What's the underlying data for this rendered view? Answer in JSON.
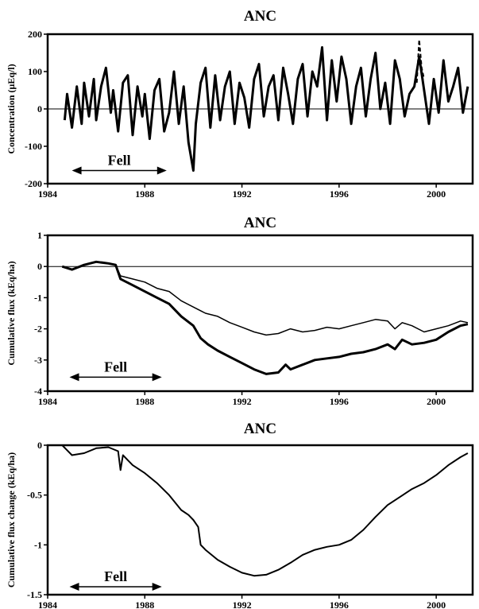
{
  "chart_data": [
    {
      "type": "line",
      "title": "ANC",
      "xlabel": "",
      "ylabel": "Concentration (µEq/l)",
      "xlim": [
        1984,
        2001.5
      ],
      "ylim": [
        -200,
        200
      ],
      "x_ticks": [
        1984,
        1988,
        1992,
        1996,
        2000
      ],
      "y_ticks": [
        200,
        100,
        0,
        -100,
        -200
      ],
      "grid": false,
      "zero_line": true,
      "annotation": {
        "text": "Fell",
        "x_start": 1985.0,
        "x_end": 1988.9,
        "y": -165
      },
      "series": [
        {
          "style": "solid-thick",
          "x": [
            1984.7,
            1984.8,
            1985.0,
            1985.2,
            1985.4,
            1985.5,
            1985.7,
            1985.9,
            1986.0,
            1986.2,
            1986.4,
            1986.6,
            1986.7,
            1986.9,
            1987.1,
            1987.3,
            1987.5,
            1987.7,
            1987.9,
            1988.0,
            1988.2,
            1988.4,
            1988.6,
            1988.8,
            1989.0,
            1989.2,
            1989.4,
            1989.6,
            1989.8,
            1990.0,
            1990.1,
            1990.3,
            1990.5,
            1990.7,
            1990.9,
            1991.1,
            1991.3,
            1991.5,
            1991.7,
            1991.9,
            1992.1,
            1992.3,
            1992.5,
            1992.7,
            1992.9,
            1993.1,
            1993.3,
            1993.5,
            1993.7,
            1993.9,
            1994.1,
            1994.3,
            1994.5,
            1994.7,
            1994.9,
            1995.1,
            1995.3,
            1995.5,
            1995.7,
            1995.9,
            1996.1,
            1996.3,
            1996.5,
            1996.7,
            1996.9,
            1997.1,
            1997.3,
            1997.5,
            1997.7,
            1997.9,
            1998.1,
            1998.3,
            1998.5,
            1998.7,
            1998.9,
            1999.1,
            1999.3,
            1999.5,
            1999.7,
            1999.9,
            2000.1,
            2000.3,
            2000.5,
            2000.7,
            2000.9,
            2001.1,
            2001.3
          ],
          "y": [
            -30,
            40,
            -50,
            60,
            -40,
            70,
            -20,
            80,
            -30,
            60,
            110,
            -10,
            50,
            -60,
            70,
            90,
            -70,
            60,
            -20,
            40,
            -80,
            50,
            80,
            -60,
            -10,
            100,
            -40,
            60,
            -90,
            -165,
            -40,
            70,
            110,
            -50,
            90,
            -30,
            60,
            100,
            -40,
            70,
            30,
            -50,
            80,
            120,
            -20,
            60,
            90,
            -30,
            110,
            40,
            -40,
            80,
            120,
            -20,
            100,
            60,
            165,
            -30,
            130,
            20,
            140,
            80,
            -40,
            60,
            110,
            -20,
            80,
            150,
            0,
            70,
            -40,
            130,
            80,
            -20,
            40,
            60,
            140,
            50,
            -40,
            80,
            -10,
            130,
            20,
            60,
            110,
            -10,
            60
          ]
        },
        {
          "style": "dashed",
          "x": [
            1999.2,
            1999.3,
            1999.4,
            1999.5
          ],
          "y": [
            70,
            185,
            110,
            80
          ]
        }
      ]
    },
    {
      "type": "line",
      "title": "ANC",
      "xlabel": "",
      "ylabel": "Cumulative flux (kEq/ha)",
      "xlim": [
        1984,
        2001.5
      ],
      "ylim": [
        -4,
        1
      ],
      "x_ticks": [
        1984,
        1988,
        1992,
        1996,
        2000
      ],
      "y_ticks": [
        1,
        0,
        -1,
        -2,
        -3,
        -4
      ],
      "grid": false,
      "zero_line": true,
      "annotation": {
        "text": "Fell",
        "x_start": 1984.9,
        "x_end": 1988.7,
        "y": -3.55
      },
      "series": [
        {
          "style": "solid-thick",
          "x": [
            1984.6,
            1985.0,
            1985.5,
            1986.0,
            1986.5,
            1986.8,
            1987.0,
            1987.5,
            1988.0,
            1988.5,
            1989.0,
            1989.5,
            1990.0,
            1990.3,
            1990.6,
            1991.0,
            1991.5,
            1992.0,
            1992.5,
            1993.0,
            1993.5,
            1993.8,
            1994.0,
            1994.5,
            1995.0,
            1995.5,
            1996.0,
            1996.5,
            1997.0,
            1997.5,
            1998.0,
            1998.3,
            1998.6,
            1999.0,
            1999.5,
            2000.0,
            2000.5,
            2001.0,
            2001.3
          ],
          "y": [
            0.0,
            -0.1,
            0.05,
            0.15,
            0.1,
            0.05,
            -0.4,
            -0.6,
            -0.8,
            -1.0,
            -1.2,
            -1.6,
            -1.9,
            -2.3,
            -2.5,
            -2.7,
            -2.9,
            -3.1,
            -3.3,
            -3.45,
            -3.4,
            -3.15,
            -3.3,
            -3.15,
            -3.0,
            -2.95,
            -2.9,
            -2.8,
            -2.75,
            -2.65,
            -2.5,
            -2.65,
            -2.35,
            -2.5,
            -2.45,
            -2.35,
            -2.1,
            -1.9,
            -1.85
          ]
        },
        {
          "style": "solid-thin",
          "x": [
            1984.6,
            1985.0,
            1985.5,
            1986.0,
            1986.5,
            1986.8,
            1987.0,
            1987.5,
            1988.0,
            1988.5,
            1989.0,
            1989.5,
            1990.0,
            1990.5,
            1991.0,
            1991.5,
            1992.0,
            1992.5,
            1993.0,
            1993.5,
            1994.0,
            1994.5,
            1995.0,
            1995.5,
            1996.0,
            1996.5,
            1997.0,
            1997.5,
            1998.0,
            1998.3,
            1998.6,
            1999.0,
            1999.5,
            2000.0,
            2000.5,
            2001.0,
            2001.3
          ],
          "y": [
            0.0,
            -0.1,
            0.05,
            0.15,
            0.1,
            0.05,
            -0.3,
            -0.4,
            -0.5,
            -0.7,
            -0.8,
            -1.1,
            -1.3,
            -1.5,
            -1.6,
            -1.8,
            -1.95,
            -2.1,
            -2.2,
            -2.15,
            -2.0,
            -2.1,
            -2.05,
            -1.95,
            -2.0,
            -1.9,
            -1.8,
            -1.7,
            -1.75,
            -2.0,
            -1.8,
            -1.9,
            -2.1,
            -2.0,
            -1.9,
            -1.75,
            -1.8
          ]
        }
      ]
    },
    {
      "type": "line",
      "title": "ANC",
      "xlabel": "",
      "ylabel": "Cumulative flux change (kEq/ha)",
      "xlim": [
        1984,
        2001.5
      ],
      "ylim": [
        -1.5,
        0
      ],
      "x_ticks": [
        1984,
        1988,
        1992,
        1996,
        2000
      ],
      "y_ticks": [
        0,
        -0.5,
        -1,
        -1.5
      ],
      "grid": false,
      "zero_line": false,
      "annotation": {
        "text": "Fell",
        "x_start": 1984.9,
        "x_end": 1988.7,
        "y": -1.42
      },
      "series": [
        {
          "style": "solid",
          "x": [
            1984.6,
            1984.8,
            1985.0,
            1985.5,
            1986.0,
            1986.5,
            1986.9,
            1987.0,
            1987.1,
            1987.3,
            1987.5,
            1988.0,
            1988.5,
            1989.0,
            1989.5,
            1989.8,
            1990.0,
            1990.2,
            1990.3,
            1990.5,
            1991.0,
            1991.5,
            1992.0,
            1992.5,
            1993.0,
            1993.5,
            1994.0,
            1994.5,
            1995.0,
            1995.5,
            1996.0,
            1996.5,
            1997.0,
            1997.5,
            1998.0,
            1998.5,
            1999.0,
            1999.5,
            2000.0,
            2000.5,
            2001.0,
            2001.3
          ],
          "y": [
            0.0,
            -0.05,
            -0.1,
            -0.08,
            -0.03,
            -0.02,
            -0.06,
            -0.25,
            -0.1,
            -0.15,
            -0.2,
            -0.28,
            -0.38,
            -0.5,
            -0.65,
            -0.7,
            -0.75,
            -0.82,
            -1.0,
            -1.05,
            -1.15,
            -1.22,
            -1.28,
            -1.31,
            -1.3,
            -1.25,
            -1.18,
            -1.1,
            -1.05,
            -1.02,
            -1.0,
            -0.95,
            -0.85,
            -0.72,
            -0.6,
            -0.52,
            -0.44,
            -0.38,
            -0.3,
            -0.2,
            -0.12,
            -0.08
          ]
        }
      ]
    }
  ]
}
